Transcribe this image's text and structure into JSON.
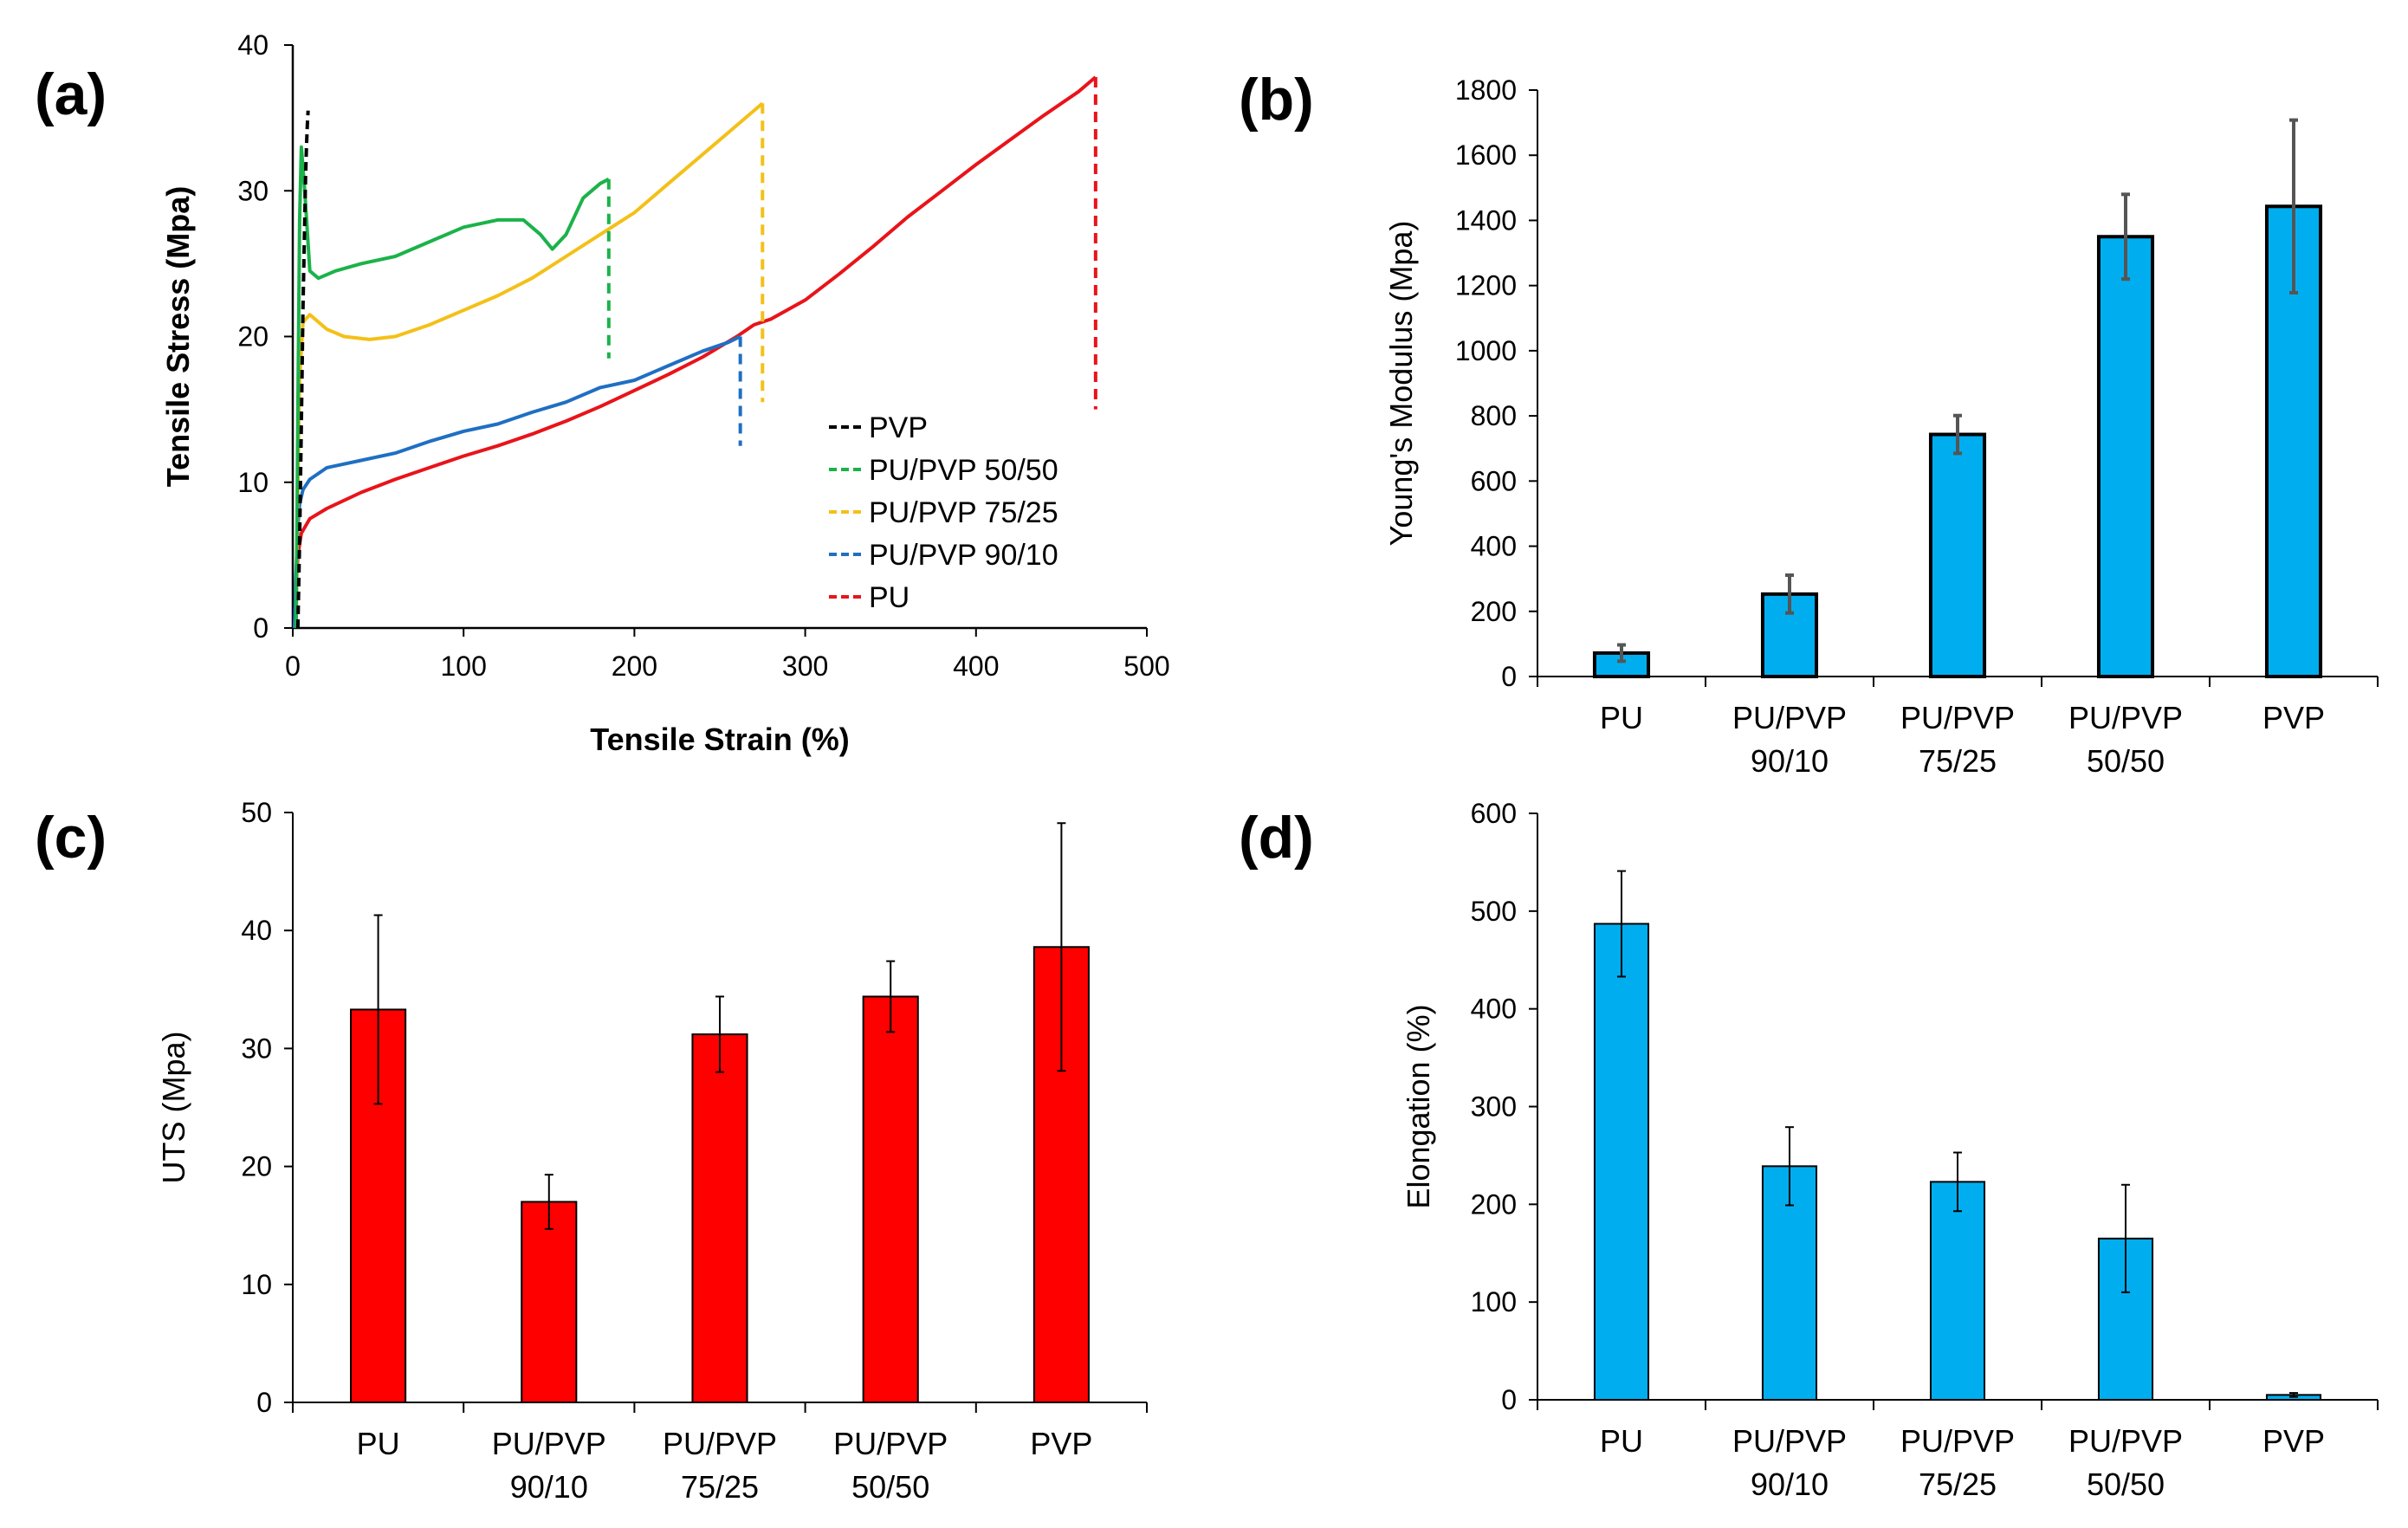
{
  "colors": {
    "PVP": "#000000",
    "PU/PVP 50/50": "#1bb24a",
    "PU/PVP 75/25": "#f4c018",
    "PU/PVP 90/10": "#1f6fc3",
    "PU": "#e8141a",
    "bar_blue": "#00aeef",
    "bar_red": "#ff0000",
    "error": "#404040"
  },
  "chart_data": [
    {
      "id": "a",
      "panel_label": "(a)",
      "type": "line",
      "xlabel": "Tensile Strain (%)",
      "ylabel": "Tensile Stress (Mpa)",
      "xlim": [
        0,
        500
      ],
      "ylim": [
        0,
        40
      ],
      "xticks": [
        0,
        100,
        200,
        300,
        400,
        500
      ],
      "yticks": [
        0,
        10,
        20,
        30,
        40
      ],
      "legend_position": "lower-right",
      "series": [
        {
          "name": "PVP",
          "color_key": "PVP",
          "x": [
            3,
            4,
            5,
            6,
            7,
            7.5,
            8,
            8.5,
            9
          ],
          "y": [
            0,
            6,
            14,
            22,
            28,
            31,
            33,
            34.5,
            35.5
          ],
          "break_to": null
        },
        {
          "name": "PU/PVP 50/50",
          "color_key": "PU/PVP 50/50",
          "x": [
            2,
            3,
            4,
            5,
            7,
            10,
            15,
            25,
            40,
            60,
            80,
            100,
            120,
            135,
            145,
            152,
            160,
            170,
            180,
            185
          ],
          "y": [
            0,
            15,
            28,
            33,
            30,
            24.5,
            24,
            24.5,
            25,
            25.5,
            26.5,
            27.5,
            28,
            28,
            27,
            26,
            27,
            29.5,
            30.5,
            30.8
          ],
          "break_to": 18.5
        },
        {
          "name": "PU/PVP 75/25",
          "color_key": "PU/PVP 75/25",
          "x": [
            2,
            3,
            4,
            6,
            10,
            20,
            30,
            45,
            60,
            80,
            100,
            120,
            140,
            160,
            180,
            200,
            220,
            240,
            255,
            265,
            275
          ],
          "y": [
            0,
            10,
            17,
            21,
            21.5,
            20.5,
            20,
            19.8,
            20,
            20.8,
            21.8,
            22.8,
            24,
            25.5,
            27,
            28.5,
            30.5,
            32.5,
            34,
            35,
            36
          ],
          "break_to": 15.5
        },
        {
          "name": "PU/PVP 90/10",
          "color_key": "PU/PVP 90/10",
          "x": [
            1,
            2,
            3,
            4,
            6,
            10,
            20,
            40,
            60,
            80,
            100,
            120,
            140,
            160,
            180,
            200,
            220,
            240,
            255,
            262
          ],
          "y": [
            0,
            4,
            7,
            8.5,
            9.5,
            10.2,
            11,
            11.5,
            12,
            12.8,
            13.5,
            14,
            14.8,
            15.5,
            16.5,
            17,
            18,
            19,
            19.6,
            20
          ],
          "break_to": 12.5
        },
        {
          "name": "PU",
          "color_key": "PU",
          "x": [
            1,
            2,
            3,
            5,
            10,
            20,
            40,
            60,
            80,
            100,
            120,
            140,
            160,
            180,
            200,
            220,
            240,
            260,
            270,
            280,
            300,
            320,
            340,
            360,
            380,
            400,
            420,
            440,
            460,
            470
          ],
          "y": [
            0,
            3,
            5,
            6.5,
            7.5,
            8.2,
            9.3,
            10.2,
            11,
            11.8,
            12.5,
            13.3,
            14.2,
            15.2,
            16.3,
            17.4,
            18.6,
            20,
            20.8,
            21.2,
            22.5,
            24.3,
            26.2,
            28.2,
            30,
            31.8,
            33.5,
            35.2,
            36.8,
            37.8
          ],
          "break_to": 15
        }
      ]
    },
    {
      "id": "b",
      "panel_label": "(b)",
      "type": "bar",
      "ylabel": "Young's Modulus (Mpa)",
      "ylim": [
        0,
        1800
      ],
      "yticks": [
        0,
        200,
        400,
        600,
        800,
        1000,
        1200,
        1400,
        1600,
        1800
      ],
      "color_key": "bar_blue",
      "bar_outline": "thick",
      "categories": [
        [
          "PU"
        ],
        [
          "PU/PVP",
          "90/10"
        ],
        [
          "PU/PVP",
          "75/25"
        ],
        [
          "PU/PVP",
          "50/50"
        ],
        [
          "PVP"
        ]
      ],
      "values": [
        72,
        253,
        743,
        1350,
        1443
      ],
      "errors": [
        25,
        58,
        58,
        130,
        265
      ]
    },
    {
      "id": "c",
      "panel_label": "(c)",
      "type": "bar",
      "ylabel": "UTS (Mpa)",
      "ylim": [
        0,
        50
      ],
      "yticks": [
        0,
        10,
        20,
        30,
        40,
        50
      ],
      "color_key": "bar_red",
      "bar_outline": "thin",
      "categories": [
        [
          "PU"
        ],
        [
          "PU/PVP",
          "90/10"
        ],
        [
          "PU/PVP",
          "75/25"
        ],
        [
          "PU/PVP",
          "50/50"
        ],
        [
          "PVP"
        ]
      ],
      "values": [
        33.3,
        17.0,
        31.2,
        34.4,
        38.6
      ],
      "errors": [
        8.0,
        2.3,
        3.2,
        3.0,
        10.5
      ]
    },
    {
      "id": "d",
      "panel_label": "(d)",
      "type": "bar",
      "ylabel": "Elongation (%)",
      "ylim": [
        0,
        600
      ],
      "yticks": [
        0,
        100,
        200,
        300,
        400,
        500,
        600
      ],
      "color_key": "bar_blue",
      "bar_outline": "thin",
      "categories": [
        [
          "PU"
        ],
        [
          "PU/PVP",
          "90/10"
        ],
        [
          "PU/PVP",
          "75/25"
        ],
        [
          "PU/PVP",
          "50/50"
        ],
        [
          "PVP"
        ]
      ],
      "values": [
        487,
        239,
        223,
        165,
        5
      ],
      "errors": [
        54,
        40,
        30,
        55,
        2
      ]
    }
  ]
}
